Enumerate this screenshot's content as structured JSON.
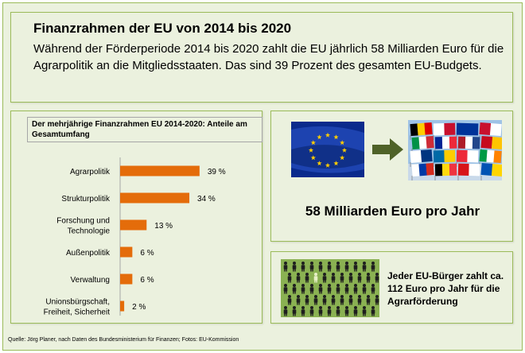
{
  "header": {
    "title": "Finanzrahmen der EU von 2014 bis 2020",
    "text": "Während der Förderperiode 2014 bis 2020 zahlt die EU jährlich 58 Milliarden Euro für die Agrarpolitik an die Mitgliedsstaaten. Das sind 39 Prozent des gesamten EU-Budgets."
  },
  "chart_data": {
    "type": "bar",
    "orientation": "horizontal",
    "title": "Der mehrjährige Finanzrahmen EU 2014-2020: Anteile am Gesamtumfang",
    "categories": [
      [
        "Agrarpolitik"
      ],
      [
        "Strukturpolitik"
      ],
      [
        "Forschung und",
        "Technologie"
      ],
      [
        "Außenpolitik"
      ],
      [
        "Verwaltung"
      ],
      [
        "Unionsbürgschaft,",
        "Freiheit, Sicherheit"
      ]
    ],
    "values": [
      39,
      34,
      13,
      6,
      6,
      2
    ],
    "value_labels": [
      "39 %",
      "34 %",
      "13 %",
      "6 %",
      "6 %",
      "2 %"
    ],
    "unit": "%",
    "bar_color": "#e46c0a",
    "grid": false,
    "legend": "none"
  },
  "flags": {
    "eu_flag_icon": "eu-flag",
    "arrow_icon": "arrow-right",
    "member_flags_icon": "member-state-flags",
    "amount_text": "58 Milliarden Euro pro Jahr"
  },
  "people": {
    "icon": "crowd-icon",
    "text": "Jeder EU-Bürger zahlt ca. 112 Euro pro Jahr für die Agrarförderung"
  },
  "footer": {
    "source": "Quelle: Jörg Planer, nach Daten des Bundesministerium für Finanzen; Fotos: EU-Kommission"
  },
  "colors": {
    "background": "#ebf1de",
    "border": "#9bbb59",
    "arrow": "#4f6228",
    "eu_blue": "#003399",
    "eu_gold": "#ffcc00"
  }
}
